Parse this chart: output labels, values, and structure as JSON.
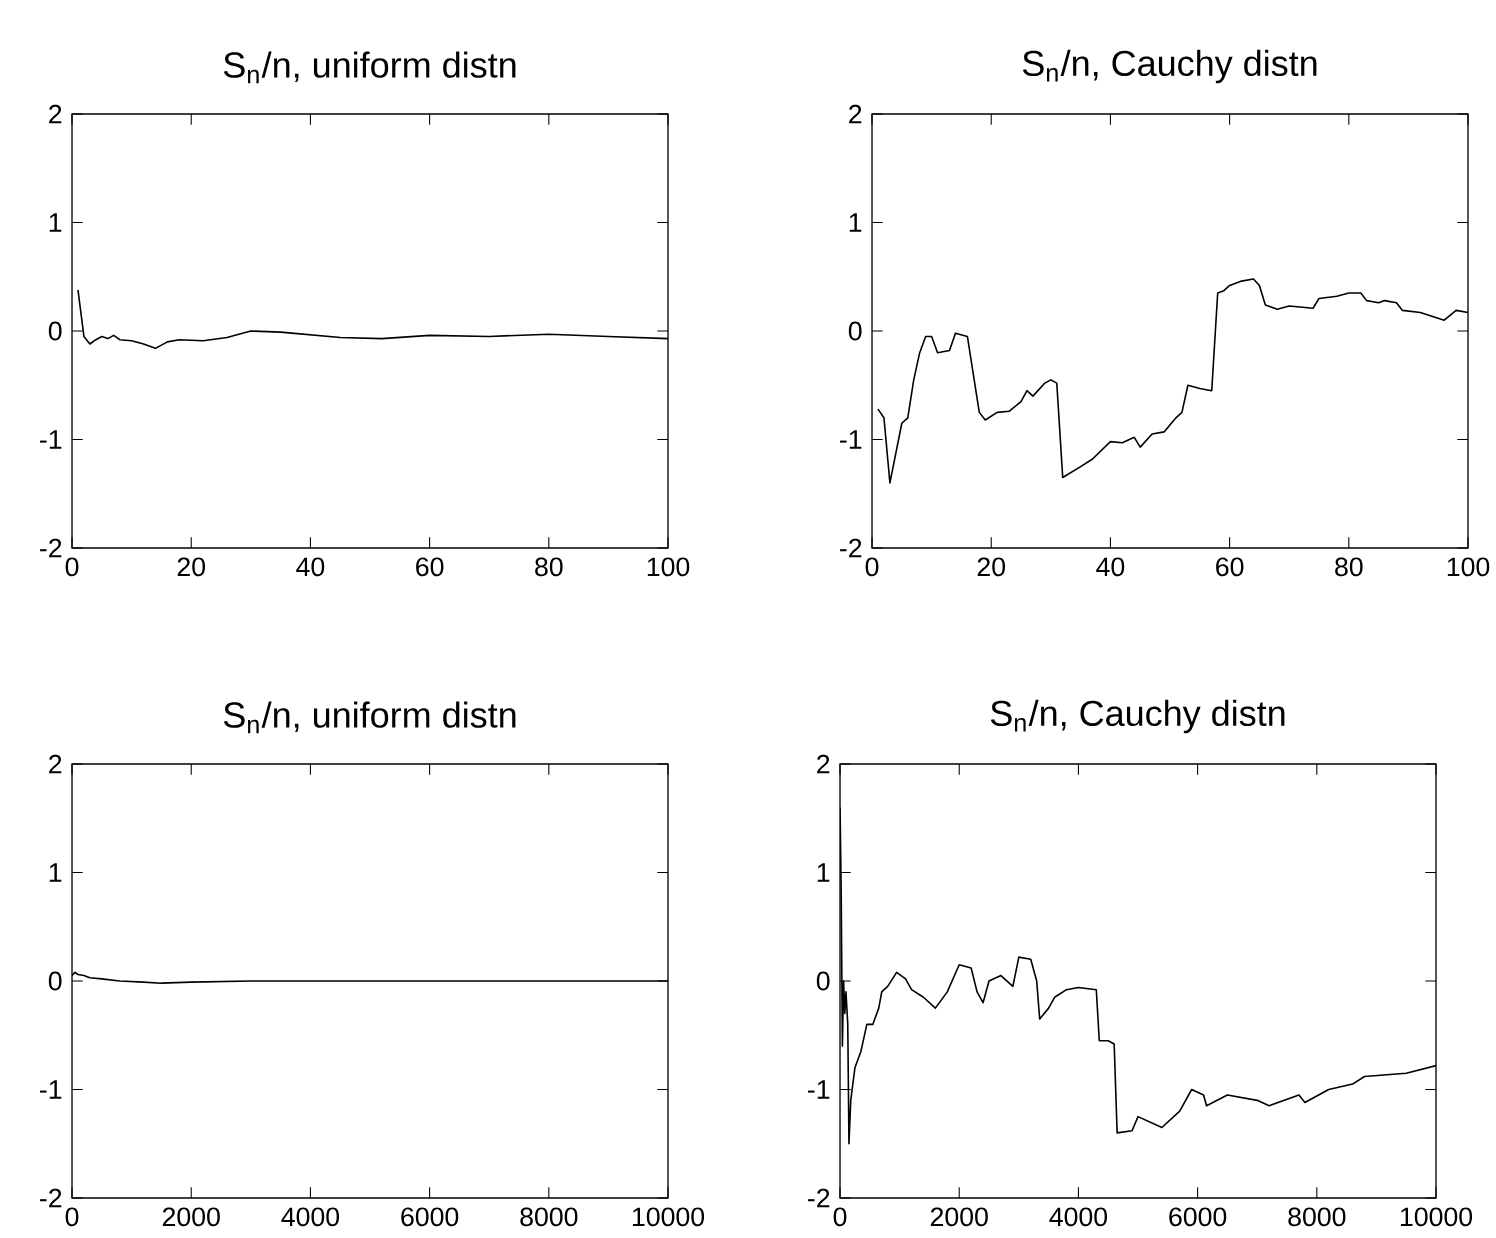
{
  "chart_data": [
    {
      "type": "line",
      "title": "S$_{n}$/n, uniform distn",
      "color": "#000000",
      "xlim": [
        0,
        100
      ],
      "ylim": [
        -2,
        2
      ],
      "xticks": [
        0,
        20,
        40,
        60,
        80,
        100
      ],
      "yticks": [
        -2,
        -1,
        0,
        1,
        2
      ],
      "x": [
        1,
        2,
        3,
        4,
        5,
        6,
        7,
        8,
        10,
        12,
        14,
        16,
        18,
        22,
        26,
        30,
        35,
        45,
        52,
        60,
        70,
        80,
        90,
        100
      ],
      "values": [
        0.38,
        -0.05,
        -0.12,
        -0.08,
        -0.05,
        -0.07,
        -0.04,
        -0.08,
        -0.09,
        -0.12,
        -0.16,
        -0.1,
        -0.08,
        -0.09,
        -0.06,
        0.0,
        -0.01,
        -0.06,
        -0.07,
        -0.04,
        -0.05,
        -0.03,
        -0.05,
        -0.07
      ]
    },
    {
      "type": "line",
      "title": "S$_{n}$/n, Cauchy distn",
      "color": "#000000",
      "xlim": [
        0,
        100
      ],
      "ylim": [
        -2,
        2
      ],
      "xticks": [
        0,
        20,
        40,
        60,
        80,
        100
      ],
      "yticks": [
        -2,
        -1,
        0,
        1,
        2
      ],
      "x": [
        1,
        2,
        3,
        5,
        6,
        7,
        8,
        9,
        10,
        11,
        13,
        14,
        16,
        18,
        19,
        21,
        23,
        25,
        26,
        27,
        29,
        30,
        31,
        32,
        35,
        37,
        40,
        42,
        44,
        45,
        47,
        49,
        51,
        52,
        53,
        55,
        57,
        58,
        59,
        60,
        62,
        64,
        65,
        66,
        68,
        70,
        72,
        74,
        75,
        78,
        80,
        82,
        83,
        85,
        86,
        88,
        89,
        92,
        96,
        98,
        100
      ],
      "values": [
        -0.72,
        -0.8,
        -1.4,
        -0.85,
        -0.8,
        -0.45,
        -0.2,
        -0.05,
        -0.05,
        -0.2,
        -0.18,
        -0.02,
        -0.05,
        -0.75,
        -0.82,
        -0.75,
        -0.74,
        -0.65,
        -0.55,
        -0.6,
        -0.48,
        -0.45,
        -0.48,
        -1.35,
        -1.25,
        -1.18,
        -1.02,
        -1.03,
        -0.98,
        -1.07,
        -0.95,
        -0.93,
        -0.8,
        -0.75,
        -0.5,
        -0.53,
        -0.55,
        0.35,
        0.37,
        0.42,
        0.46,
        0.48,
        0.42,
        0.24,
        0.2,
        0.23,
        0.22,
        0.21,
        0.3,
        0.32,
        0.35,
        0.35,
        0.28,
        0.26,
        0.28,
        0.26,
        0.19,
        0.17,
        0.1,
        0.19,
        0.17
      ]
    },
    {
      "type": "line",
      "title": "S$_{n}$/n, uniform distn",
      "color": "#000000",
      "xlim": [
        0,
        10000
      ],
      "ylim": [
        -2,
        2
      ],
      "xticks": [
        0,
        2000,
        4000,
        6000,
        8000,
        10000
      ],
      "yticks": [
        -2,
        -1,
        0,
        1,
        2
      ],
      "x": [
        1,
        50,
        100,
        200,
        300,
        500,
        800,
        1200,
        1500,
        2000,
        3000,
        4000,
        6000,
        8000,
        10000
      ],
      "values": [
        0.05,
        0.08,
        0.06,
        0.05,
        0.03,
        0.02,
        0.0,
        -0.01,
        -0.02,
        -0.01,
        0.0,
        0.0,
        0.0,
        0.0,
        0.0
      ]
    },
    {
      "type": "line",
      "title": "S$_{n}$/n, Cauchy distn",
      "color": "#000000",
      "xlim": [
        0,
        10000
      ],
      "ylim": [
        -2,
        2
      ],
      "xticks": [
        0,
        2000,
        4000,
        6000,
        8000,
        10000
      ],
      "yticks": [
        -2,
        -1,
        0,
        1,
        2
      ],
      "x": [
        1,
        20,
        40,
        60,
        80,
        100,
        130,
        150,
        180,
        250,
        350,
        450,
        550,
        650,
        700,
        800,
        950,
        1100,
        1200,
        1400,
        1600,
        1800,
        2000,
        2200,
        2300,
        2400,
        2500,
        2700,
        2900,
        3000,
        3200,
        3300,
        3350,
        3500,
        3600,
        3800,
        4000,
        4300,
        4350,
        4500,
        4600,
        4650,
        4900,
        5000,
        5200,
        5400,
        5700,
        5900,
        6100,
        6150,
        6500,
        7000,
        7200,
        7700,
        7800,
        8200,
        8600,
        8800,
        9500,
        10000
      ],
      "values": [
        1.6,
        0.8,
        -0.6,
        0.0,
        -0.3,
        -0.1,
        -0.4,
        -1.5,
        -1.1,
        -0.8,
        -0.65,
        -0.4,
        -0.4,
        -0.25,
        -0.1,
        -0.05,
        0.08,
        0.02,
        -0.08,
        -0.15,
        -0.25,
        -0.1,
        0.15,
        0.12,
        -0.1,
        -0.2,
        0.0,
        0.05,
        -0.05,
        0.22,
        0.2,
        0.0,
        -0.35,
        -0.25,
        -0.15,
        -0.08,
        -0.06,
        -0.08,
        -0.55,
        -0.55,
        -0.58,
        -1.4,
        -1.38,
        -1.25,
        -1.3,
        -1.35,
        -1.2,
        -1.0,
        -1.05,
        -1.15,
        -1.05,
        -1.1,
        -1.15,
        -1.05,
        -1.12,
        -1.0,
        -0.95,
        -0.88,
        -0.85,
        -0.78
      ]
    }
  ]
}
